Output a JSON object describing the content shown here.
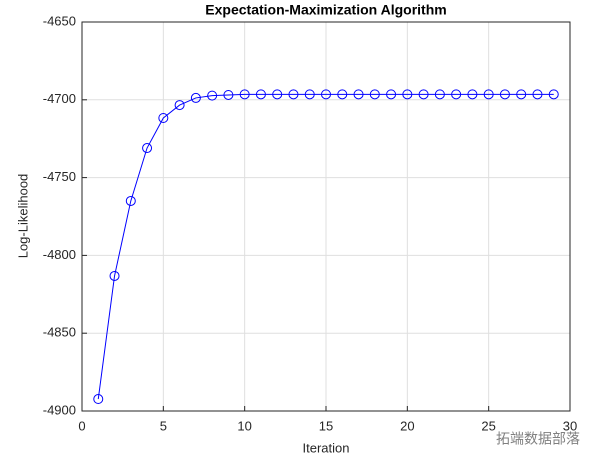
{
  "chart_data": {
    "type": "line",
    "title": "Expectation-Maximization Algorithm",
    "x_label": "Iteration",
    "y_label": "Log-Likelihood",
    "x": [
      1,
      2,
      3,
      4,
      5,
      6,
      7,
      8,
      9,
      10,
      11,
      12,
      13,
      14,
      15,
      16,
      17,
      18,
      19,
      20,
      21,
      22,
      23,
      24,
      25,
      26,
      27,
      28,
      29
    ],
    "series": [
      {
        "name": "Log-Likelihood",
        "color": "#0000ff",
        "values": [
          -4892.3,
          -4813.2,
          -4765,
          -4731,
          -4711.7,
          -4703.4,
          -4698.8,
          -4697.3,
          -4696.9,
          -4696.5,
          -4696.5,
          -4696.5,
          -4696.5,
          -4696.5,
          -4696.5,
          -4696.5,
          -4696.5,
          -4696.5,
          -4696.5,
          -4696.5,
          -4696.5,
          -4696.5,
          -4696.5,
          -4696.5,
          -4696.5,
          -4696.5,
          -4696.5,
          -4696.5,
          -4696.5
        ]
      }
    ],
    "xlim": [
      0,
      30
    ],
    "xticks": [
      0,
      5,
      10,
      15,
      20,
      25,
      30
    ],
    "ylim": [
      -4900,
      -4650
    ],
    "yticks": [
      -4900,
      -4850,
      -4800,
      -4750,
      -4700,
      -4650
    ],
    "grid": true,
    "markers": "circle",
    "annotation": "拓端数据部落"
  }
}
